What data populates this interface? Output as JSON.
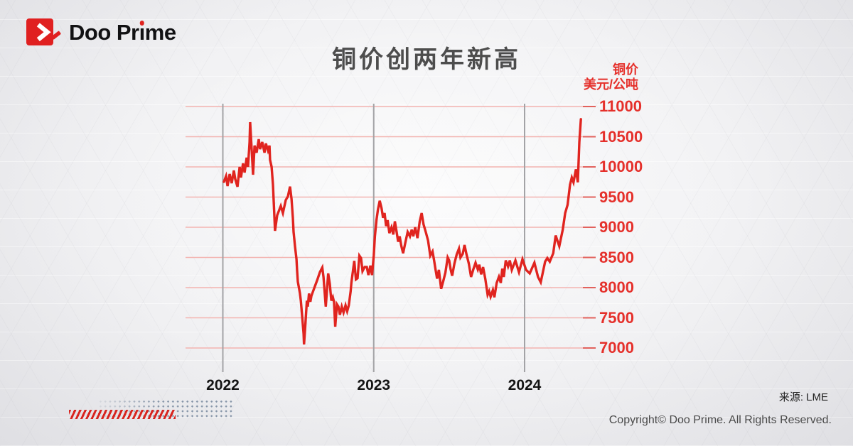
{
  "brand": {
    "name": "Doo Prime"
  },
  "header": {
    "title": "铜价创两年新高"
  },
  "y_axis_header": {
    "line1": "铜价",
    "line2": "美元/公吨"
  },
  "footer": {
    "source": "来源: LME",
    "copyright": "Copyright© Doo Prime. All Rights Reserved."
  },
  "colors": {
    "accent_red": "#e0241f",
    "logo_red": "#e02020",
    "grid_pink": "#f3b3b0",
    "tick_red": "#e2625d",
    "label_red": "#e5302b",
    "year_line_gray": "#a3a3a6",
    "title_gray": "#4d4d4d",
    "dots_blue_gray": "#8695a8"
  },
  "chart_data": {
    "type": "line",
    "title": "铜价创两年新高",
    "ylabel": "铜价",
    "unit": "美元/公吨",
    "xlabel": "",
    "grid": true,
    "legend_position": "none",
    "y_ticks": [
      11000,
      10500,
      10000,
      9500,
      9000,
      8500,
      8000,
      7500,
      7000
    ],
    "ylim": [
      7000,
      11000
    ],
    "x_ticks": [
      2022,
      2023,
      2024
    ],
    "xlim": [
      2021.75,
      2024.47
    ],
    "series": [
      {
        "name": "LME铜价",
        "color": "#e0241f",
        "points": [
          [
            2022.007,
            9753
          ],
          [
            2022.021,
            9847
          ],
          [
            2022.031,
            9682
          ],
          [
            2022.045,
            9882
          ],
          [
            2022.059,
            9729
          ],
          [
            2022.073,
            9941
          ],
          [
            2022.082,
            9800
          ],
          [
            2022.097,
            9671
          ],
          [
            2022.111,
            10000
          ],
          [
            2022.12,
            9824
          ],
          [
            2022.134,
            10059
          ],
          [
            2022.144,
            9906
          ],
          [
            2022.158,
            10153
          ],
          [
            2022.167,
            10000
          ],
          [
            2022.177,
            10412
          ],
          [
            2022.181,
            10741
          ],
          [
            2022.191,
            10294
          ],
          [
            2022.2,
            9871
          ],
          [
            2022.21,
            10353
          ],
          [
            2022.224,
            10235
          ],
          [
            2022.238,
            10459
          ],
          [
            2022.247,
            10294
          ],
          [
            2022.261,
            10412
          ],
          [
            2022.276,
            10235
          ],
          [
            2022.285,
            10388
          ],
          [
            2022.299,
            10271
          ],
          [
            2022.309,
            10353
          ],
          [
            2022.313,
            10118
          ],
          [
            2022.323,
            10000
          ],
          [
            2022.332,
            9706
          ],
          [
            2022.346,
            8941
          ],
          [
            2022.36,
            9196
          ],
          [
            2022.384,
            9353
          ],
          [
            2022.398,
            9235
          ],
          [
            2022.417,
            9451
          ],
          [
            2022.431,
            9510
          ],
          [
            2022.445,
            9674
          ],
          [
            2022.455,
            9471
          ],
          [
            2022.464,
            9157
          ],
          [
            2022.469,
            8922
          ],
          [
            2022.478,
            8686
          ],
          [
            2022.488,
            8471
          ],
          [
            2022.492,
            8294
          ],
          [
            2022.497,
            8098
          ],
          [
            2022.511,
            7902
          ],
          [
            2022.517,
            7784
          ],
          [
            2022.525,
            7549
          ],
          [
            2022.535,
            7235
          ],
          [
            2022.538,
            7059
          ],
          [
            2022.545,
            7314
          ],
          [
            2022.557,
            7784
          ],
          [
            2022.563,
            7686
          ],
          [
            2022.571,
            7902
          ],
          [
            2022.58,
            7765
          ],
          [
            2022.587,
            7863
          ],
          [
            2022.604,
            7980
          ],
          [
            2022.627,
            8137
          ],
          [
            2022.643,
            8255
          ],
          [
            2022.659,
            8333
          ],
          [
            2022.667,
            8176
          ],
          [
            2022.682,
            7686
          ],
          [
            2022.698,
            8235
          ],
          [
            2022.709,
            8059
          ],
          [
            2022.719,
            7784
          ],
          [
            2022.729,
            7843
          ],
          [
            2022.737,
            7765
          ],
          [
            2022.745,
            7353
          ],
          [
            2022.756,
            7725
          ],
          [
            2022.766,
            7686
          ],
          [
            2022.776,
            7549
          ],
          [
            2022.788,
            7686
          ],
          [
            2022.8,
            7588
          ],
          [
            2022.813,
            7706
          ],
          [
            2022.824,
            7608
          ],
          [
            2022.835,
            7706
          ],
          [
            2022.847,
            7941
          ],
          [
            2022.852,
            8078
          ],
          [
            2022.871,
            8443
          ],
          [
            2022.882,
            8137
          ],
          [
            2022.893,
            8157
          ],
          [
            2022.905,
            8529
          ],
          [
            2022.916,
            8490
          ],
          [
            2022.926,
            8274
          ],
          [
            2022.94,
            8341
          ],
          [
            2022.954,
            8341
          ],
          [
            2022.965,
            8208
          ],
          [
            2022.978,
            8365
          ],
          [
            2022.989,
            8208
          ],
          [
            2023.0,
            8529
          ],
          [
            2023.008,
            8850
          ],
          [
            2023.018,
            9118
          ],
          [
            2023.028,
            9294
          ],
          [
            2023.04,
            9439
          ],
          [
            2023.052,
            9314
          ],
          [
            2023.062,
            9157
          ],
          [
            2023.072,
            9235
          ],
          [
            2023.082,
            9020
          ],
          [
            2023.092,
            9118
          ],
          [
            2023.104,
            8902
          ],
          [
            2023.118,
            9000
          ],
          [
            2023.13,
            8880
          ],
          [
            2023.14,
            9098
          ],
          [
            2023.152,
            8920
          ],
          [
            2023.162,
            8760
          ],
          [
            2023.172,
            8850
          ],
          [
            2023.182,
            8700
          ],
          [
            2023.195,
            8569
          ],
          [
            2023.21,
            8750
          ],
          [
            2023.225,
            8922
          ],
          [
            2023.24,
            8850
          ],
          [
            2023.252,
            8960
          ],
          [
            2023.262,
            8850
          ],
          [
            2023.275,
            9000
          ],
          [
            2023.29,
            8820
          ],
          [
            2023.305,
            9100
          ],
          [
            2023.318,
            9235
          ],
          [
            2023.33,
            9050
          ],
          [
            2023.345,
            8920
          ],
          [
            2023.36,
            8780
          ],
          [
            2023.375,
            8529
          ],
          [
            2023.39,
            8600
          ],
          [
            2023.4,
            8450
          ],
          [
            2023.41,
            8294
          ],
          [
            2023.42,
            8150
          ],
          [
            2023.432,
            8294
          ],
          [
            2023.447,
            7980
          ],
          [
            2023.46,
            8100
          ],
          [
            2023.475,
            8250
          ],
          [
            2023.49,
            8500
          ],
          [
            2023.5,
            8450
          ],
          [
            2023.51,
            8300
          ],
          [
            2023.52,
            8196
          ],
          [
            2023.535,
            8400
          ],
          [
            2023.55,
            8550
          ],
          [
            2023.565,
            8647
          ],
          [
            2023.575,
            8500
          ],
          [
            2023.59,
            8560
          ],
          [
            2023.602,
            8706
          ],
          [
            2023.615,
            8550
          ],
          [
            2023.63,
            8400
          ],
          [
            2023.645,
            8176
          ],
          [
            2023.66,
            8300
          ],
          [
            2023.675,
            8412
          ],
          [
            2023.69,
            8300
          ],
          [
            2023.7,
            8380
          ],
          [
            2023.712,
            8220
          ],
          [
            2023.725,
            8340
          ],
          [
            2023.74,
            8140
          ],
          [
            2023.755,
            7882
          ],
          [
            2023.765,
            7940
          ],
          [
            2023.775,
            7850
          ],
          [
            2023.79,
            7960
          ],
          [
            2023.8,
            7840
          ],
          [
            2023.815,
            8078
          ],
          [
            2023.83,
            8180
          ],
          [
            2023.842,
            8078
          ],
          [
            2023.852,
            8314
          ],
          [
            2023.862,
            8176
          ],
          [
            2023.875,
            8451
          ],
          [
            2023.89,
            8350
          ],
          [
            2023.902,
            8451
          ],
          [
            2023.915,
            8294
          ],
          [
            2023.939,
            8451
          ],
          [
            2023.963,
            8255
          ],
          [
            2023.986,
            8470
          ],
          [
            2024.01,
            8294
          ],
          [
            2024.034,
            8235
          ],
          [
            2024.065,
            8412
          ],
          [
            2024.089,
            8176
          ],
          [
            2024.107,
            8090
          ],
          [
            2024.136,
            8431
          ],
          [
            2024.151,
            8490
          ],
          [
            2024.167,
            8431
          ],
          [
            2024.19,
            8569
          ],
          [
            2024.206,
            8863
          ],
          [
            2024.23,
            8686
          ],
          [
            2024.253,
            8961
          ],
          [
            2024.269,
            9235
          ],
          [
            2024.285,
            9373
          ],
          [
            2024.301,
            9706
          ],
          [
            2024.313,
            9824
          ],
          [
            2024.324,
            9745
          ],
          [
            2024.34,
            9960
          ],
          [
            2024.353,
            9745
          ],
          [
            2024.363,
            10410
          ],
          [
            2024.373,
            10790
          ]
        ]
      }
    ]
  }
}
